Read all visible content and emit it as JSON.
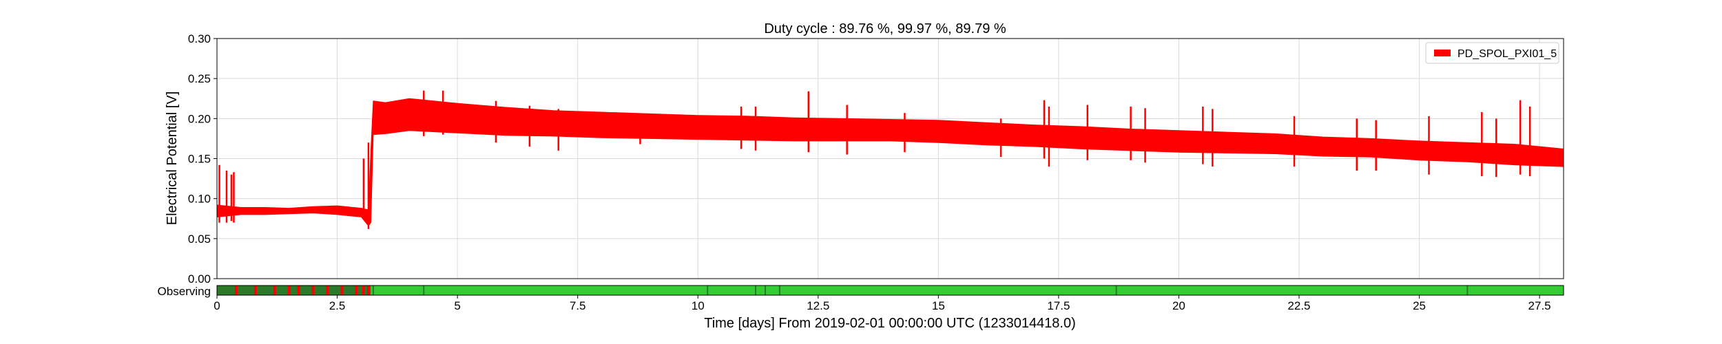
{
  "chart_data": {
    "type": "line",
    "title": "Duty cycle : 89.76 %, 99.97 %, 89.79 %",
    "xlabel": "Time [days] From 2019-02-01 00:00:00 UTC (1233014418.0)",
    "ylabel": "Electrical Potential [V]",
    "xlim": [
      0,
      28
    ],
    "ylim": [
      0,
      0.3
    ],
    "xticks": [
      0,
      2.5,
      5,
      7.5,
      10,
      12.5,
      15,
      17.5,
      20,
      22.5,
      25,
      27.5
    ],
    "xtick_labels": [
      "0",
      "2.5",
      "5",
      "7.5",
      "10",
      "12.5",
      "15",
      "17.5",
      "20",
      "22.5",
      "25",
      "27.5"
    ],
    "yticks": [
      0,
      0.05,
      0.1,
      0.15,
      0.2,
      0.25,
      0.3
    ],
    "ytick_labels": [
      "0.00",
      "0.05",
      "0.10",
      "0.15",
      "0.20",
      "0.25",
      "0.30"
    ],
    "grid": true,
    "legend_position": "top-right",
    "series": [
      {
        "name": "PD_SPOL_PXI01_5",
        "color": "#ff0000",
        "envelope": {
          "x": [
            0,
            0.5,
            1,
            1.5,
            2,
            2.5,
            3.0,
            3.15,
            3.2,
            3.25,
            3.5,
            4,
            5,
            6,
            7,
            8,
            9,
            10,
            11,
            12,
            13,
            14,
            15,
            16,
            17,
            18,
            19,
            20,
            21,
            22,
            23,
            24,
            25,
            26,
            27,
            28
          ],
          "lower": [
            0.077,
            0.08,
            0.08,
            0.081,
            0.082,
            0.08,
            0.077,
            0.066,
            0.07,
            0.18,
            0.181,
            0.185,
            0.182,
            0.179,
            0.178,
            0.176,
            0.175,
            0.174,
            0.173,
            0.172,
            0.172,
            0.172,
            0.17,
            0.167,
            0.165,
            0.162,
            0.16,
            0.158,
            0.157,
            0.156,
            0.153,
            0.152,
            0.148,
            0.146,
            0.142,
            0.14
          ],
          "upper": [
            0.092,
            0.089,
            0.089,
            0.088,
            0.09,
            0.091,
            0.088,
            0.086,
            0.16,
            0.222,
            0.22,
            0.225,
            0.219,
            0.214,
            0.21,
            0.208,
            0.206,
            0.204,
            0.203,
            0.201,
            0.2,
            0.199,
            0.198,
            0.195,
            0.192,
            0.19,
            0.187,
            0.185,
            0.183,
            0.181,
            0.177,
            0.175,
            0.172,
            0.17,
            0.168,
            0.162
          ]
        },
        "spikes": [
          {
            "x": 0.05,
            "low": 0.07,
            "high": 0.142
          },
          {
            "x": 0.2,
            "low": 0.07,
            "high": 0.135
          },
          {
            "x": 0.3,
            "low": 0.072,
            "high": 0.13
          },
          {
            "x": 0.35,
            "low": 0.07,
            "high": 0.133
          },
          {
            "x": 3.05,
            "low": 0.075,
            "high": 0.15
          },
          {
            "x": 3.15,
            "low": 0.062,
            "high": 0.17
          },
          {
            "x": 4.3,
            "low": 0.178,
            "high": 0.235
          },
          {
            "x": 4.7,
            "low": 0.18,
            "high": 0.235
          },
          {
            "x": 5.8,
            "low": 0.17,
            "high": 0.222
          },
          {
            "x": 6.5,
            "low": 0.165,
            "high": 0.216
          },
          {
            "x": 7.1,
            "low": 0.16,
            "high": 0.212
          },
          {
            "x": 8.8,
            "low": 0.168,
            "high": 0.206
          },
          {
            "x": 10.9,
            "low": 0.162,
            "high": 0.215
          },
          {
            "x": 11.2,
            "low": 0.16,
            "high": 0.215
          },
          {
            "x": 12.3,
            "low": 0.158,
            "high": 0.234
          },
          {
            "x": 13.1,
            "low": 0.155,
            "high": 0.217
          },
          {
            "x": 14.3,
            "low": 0.158,
            "high": 0.207
          },
          {
            "x": 16.3,
            "low": 0.152,
            "high": 0.2
          },
          {
            "x": 17.2,
            "low": 0.15,
            "high": 0.223
          },
          {
            "x": 17.3,
            "low": 0.14,
            "high": 0.215
          },
          {
            "x": 18.1,
            "low": 0.148,
            "high": 0.217
          },
          {
            "x": 19.0,
            "low": 0.148,
            "high": 0.215
          },
          {
            "x": 19.3,
            "low": 0.145,
            "high": 0.213
          },
          {
            "x": 20.5,
            "low": 0.143,
            "high": 0.215
          },
          {
            "x": 20.7,
            "low": 0.14,
            "high": 0.212
          },
          {
            "x": 22.4,
            "low": 0.14,
            "high": 0.203
          },
          {
            "x": 23.7,
            "low": 0.135,
            "high": 0.2
          },
          {
            "x": 24.1,
            "low": 0.135,
            "high": 0.198
          },
          {
            "x": 25.2,
            "low": 0.13,
            "high": 0.203
          },
          {
            "x": 26.3,
            "low": 0.128,
            "high": 0.208
          },
          {
            "x": 26.6,
            "low": 0.127,
            "high": 0.2
          },
          {
            "x": 27.1,
            "low": 0.13,
            "high": 0.223
          },
          {
            "x": 27.3,
            "low": 0.128,
            "high": 0.215
          }
        ]
      }
    ],
    "state_bar": {
      "label": "Observing",
      "on_color": "#33cc33",
      "off_color": "#ff0000",
      "dark_color": "#2a7a2a",
      "segments": [
        {
          "start": 0,
          "end": 3.2,
          "state": "mixed"
        },
        {
          "start": 3.2,
          "end": 28,
          "state": "on"
        }
      ],
      "gaps": [
        0.4,
        0.8,
        1.2,
        1.5,
        1.7,
        2.0,
        2.3,
        2.6,
        2.9,
        3.05,
        3.15
      ],
      "dark_ticks": [
        3.25,
        4.3,
        10.2,
        11.2,
        11.4,
        11.7,
        18.7,
        26.0
      ]
    }
  }
}
